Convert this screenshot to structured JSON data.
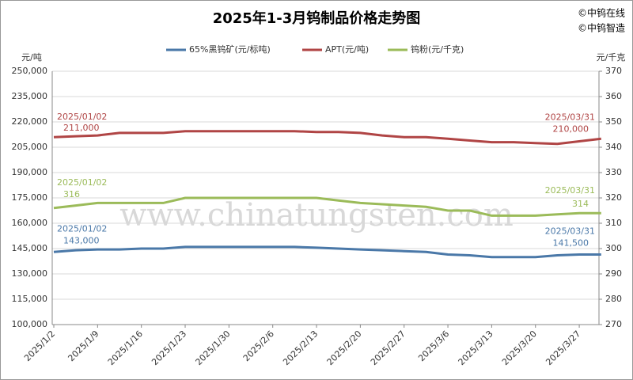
{
  "chart_data": {
    "type": "line",
    "title": "2025年1-3月钨制品价格走势图",
    "credits": [
      "©中钨在线",
      "©中钨智造"
    ],
    "watermark": "www.chinatungsten.com",
    "ylabel": "元/吨",
    "y2label": "元/千克",
    "categories": [
      "2025/1/2",
      null,
      "2025/1/9",
      null,
      "2025/1/16",
      null,
      "2025/1/23",
      null,
      "2025/1/30",
      null,
      "2025/2/6",
      null,
      "2025/2/13",
      null,
      "2025/2/20",
      null,
      "2025/2/27",
      null,
      "2025/3/6",
      null,
      "2025/3/13",
      null,
      "2025/3/20",
      null,
      "2025/3/27",
      null
    ],
    "ylim": [
      100000,
      250000
    ],
    "yticks": [
      {
        "value": 100000,
        "label": "100,000"
      },
      {
        "value": 115000,
        "label": "115,000"
      },
      {
        "value": 130000,
        "label": "130,000"
      },
      {
        "value": 145000,
        "label": "145,000"
      },
      {
        "value": 160000,
        "label": "160,000"
      },
      {
        "value": 175000,
        "label": "175,000"
      },
      {
        "value": 190000,
        "label": "190,000"
      },
      {
        "value": 205000,
        "label": "205,000"
      },
      {
        "value": 220000,
        "label": "220,000"
      },
      {
        "value": 235000,
        "label": "235,000"
      },
      {
        "value": 250000,
        "label": "250,000"
      }
    ],
    "y2lim": [
      270,
      370
    ],
    "y2ticks": [
      270,
      280,
      290,
      300,
      310,
      320,
      330,
      340,
      350,
      360,
      370
    ],
    "grid": true,
    "series": [
      {
        "name": "65%黑钨矿(元/标吨)",
        "color": "#4a78a8",
        "values": [
          143000,
          144000,
          144500,
          144500,
          145000,
          145000,
          146000,
          146000,
          146000,
          146000,
          146000,
          146000,
          145500,
          145000,
          144500,
          144000,
          143500,
          143000,
          141500,
          141000,
          140000,
          140000,
          140000,
          141000,
          141500,
          141500
        ],
        "start_date_label": "2025/01/02",
        "start_value_label": "143,000",
        "end_date_label": "2025/03/31",
        "end_value_label": "141,500"
      },
      {
        "name": "APT(元/吨)",
        "color": "#b04545",
        "values": [
          211000,
          211500,
          212000,
          213500,
          213500,
          213500,
          214500,
          214500,
          214500,
          214500,
          214500,
          214500,
          214000,
          214000,
          213500,
          212000,
          211000,
          211000,
          210000,
          209000,
          208000,
          208000,
          207500,
          207000,
          208500,
          210000
        ],
        "start_date_label": "2025/01/02",
        "start_value_label": "211,000",
        "end_date_label": "2025/03/31",
        "end_value_label": "210,000"
      },
      {
        "name": "钨粉(元/千克)",
        "color": "#9bbb59",
        "axis": "y2",
        "values": [
          316,
          317,
          318,
          318,
          318,
          318,
          320,
          320,
          320,
          320,
          320,
          320,
          320,
          319,
          318,
          317.5,
          317,
          316.5,
          315,
          315,
          313,
          313,
          313,
          313.5,
          314,
          314
        ],
        "start_date_label": "2025/01/02",
        "start_value_label": "316",
        "end_date_label": "2025/03/31",
        "end_value_label": "314"
      }
    ]
  }
}
